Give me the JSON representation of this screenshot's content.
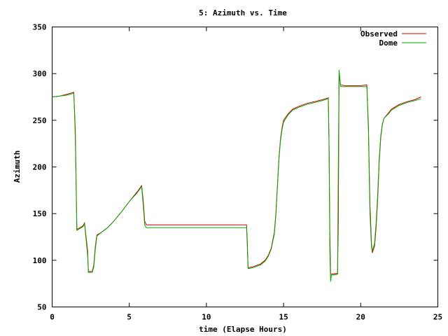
{
  "chart_data": {
    "type": "line",
    "title": "5: Azimuth vs. Time",
    "xlabel": "time (Elapse Hours)",
    "ylabel": "Azimuth",
    "xlim": [
      0,
      25
    ],
    "ylim": [
      50,
      350
    ],
    "x_ticks": [
      0,
      5,
      10,
      15,
      20,
      25
    ],
    "y_ticks": [
      50,
      100,
      150,
      200,
      250,
      300,
      350
    ],
    "grid": false,
    "legend_position": "top-right",
    "series": [
      {
        "name": "Observed",
        "color": "#cc0000",
        "points": [
          [
            0.0,
            275
          ],
          [
            0.5,
            276
          ],
          [
            1.0,
            278
          ],
          [
            1.4,
            280
          ],
          [
            1.45,
            260
          ],
          [
            1.5,
            240
          ],
          [
            1.55,
            185
          ],
          [
            1.6,
            133
          ],
          [
            2.0,
            137
          ],
          [
            2.1,
            140
          ],
          [
            2.2,
            125
          ],
          [
            2.3,
            110
          ],
          [
            2.35,
            88
          ],
          [
            2.6,
            88
          ],
          [
            2.7,
            95
          ],
          [
            2.8,
            115
          ],
          [
            2.9,
            127
          ],
          [
            3.2,
            130
          ],
          [
            3.6,
            135
          ],
          [
            4.0,
            142
          ],
          [
            4.5,
            152
          ],
          [
            5.0,
            163
          ],
          [
            5.5,
            173
          ],
          [
            5.8,
            180
          ],
          [
            5.9,
            165
          ],
          [
            6.0,
            142
          ],
          [
            6.1,
            138
          ],
          [
            12.6,
            138
          ],
          [
            12.65,
            120
          ],
          [
            12.7,
            92
          ],
          [
            13.0,
            93
          ],
          [
            13.5,
            96
          ],
          [
            13.8,
            100
          ],
          [
            14.0,
            105
          ],
          [
            14.2,
            113
          ],
          [
            14.4,
            130
          ],
          [
            14.5,
            150
          ],
          [
            14.6,
            180
          ],
          [
            14.7,
            210
          ],
          [
            14.8,
            230
          ],
          [
            14.9,
            242
          ],
          [
            15.0,
            250
          ],
          [
            15.3,
            257
          ],
          [
            15.6,
            262
          ],
          [
            16.0,
            265
          ],
          [
            16.5,
            268
          ],
          [
            17.0,
            270
          ],
          [
            17.5,
            272
          ],
          [
            17.9,
            274
          ],
          [
            17.95,
            225
          ],
          [
            18.0,
            130
          ],
          [
            18.05,
            85
          ],
          [
            18.5,
            86
          ],
          [
            18.55,
            140
          ],
          [
            18.6,
            300
          ],
          [
            18.7,
            288
          ],
          [
            19.0,
            287
          ],
          [
            19.5,
            287
          ],
          [
            20.0,
            287
          ],
          [
            20.4,
            288
          ],
          [
            20.45,
            265
          ],
          [
            20.5,
            245
          ],
          [
            20.6,
            160
          ],
          [
            20.7,
            118
          ],
          [
            20.75,
            108
          ],
          [
            20.9,
            115
          ],
          [
            21.0,
            135
          ],
          [
            21.1,
            165
          ],
          [
            21.2,
            205
          ],
          [
            21.3,
            232
          ],
          [
            21.4,
            245
          ],
          [
            21.5,
            252
          ],
          [
            21.8,
            258
          ],
          [
            22.0,
            262
          ],
          [
            22.5,
            267
          ],
          [
            23.0,
            270
          ],
          [
            23.5,
            272
          ],
          [
            23.9,
            275
          ]
        ]
      },
      {
        "name": "Dome",
        "color": "#00aa00",
        "points": [
          [
            0.0,
            275
          ],
          [
            0.5,
            276
          ],
          [
            1.0,
            277
          ],
          [
            1.4,
            279
          ],
          [
            1.45,
            258
          ],
          [
            1.5,
            230
          ],
          [
            1.55,
            180
          ],
          [
            1.6,
            132
          ],
          [
            2.0,
            136
          ],
          [
            2.1,
            139
          ],
          [
            2.2,
            122
          ],
          [
            2.3,
            105
          ],
          [
            2.35,
            87
          ],
          [
            2.6,
            87
          ],
          [
            2.7,
            93
          ],
          [
            2.8,
            112
          ],
          [
            2.9,
            126
          ],
          [
            3.2,
            130
          ],
          [
            3.6,
            135
          ],
          [
            4.0,
            142
          ],
          [
            4.5,
            152
          ],
          [
            5.0,
            163
          ],
          [
            5.5,
            172
          ],
          [
            5.8,
            179
          ],
          [
            5.9,
            160
          ],
          [
            6.0,
            138
          ],
          [
            6.1,
            135
          ],
          [
            12.6,
            135
          ],
          [
            12.65,
            115
          ],
          [
            12.7,
            91
          ],
          [
            13.0,
            92
          ],
          [
            13.5,
            95
          ],
          [
            13.8,
            99
          ],
          [
            14.0,
            104
          ],
          [
            14.2,
            112
          ],
          [
            14.4,
            128
          ],
          [
            14.5,
            148
          ],
          [
            14.6,
            178
          ],
          [
            14.7,
            208
          ],
          [
            14.8,
            228
          ],
          [
            14.9,
            240
          ],
          [
            15.0,
            248
          ],
          [
            15.3,
            256
          ],
          [
            15.6,
            261
          ],
          [
            16.0,
            264
          ],
          [
            16.5,
            267
          ],
          [
            17.0,
            269
          ],
          [
            17.5,
            271
          ],
          [
            17.9,
            273
          ],
          [
            17.95,
            220
          ],
          [
            18.0,
            110
          ],
          [
            18.05,
            77
          ],
          [
            18.1,
            84
          ],
          [
            18.5,
            85
          ],
          [
            18.55,
            200
          ],
          [
            18.6,
            304
          ],
          [
            18.7,
            286
          ],
          [
            19.0,
            286
          ],
          [
            19.5,
            286
          ],
          [
            20.0,
            286
          ],
          [
            20.4,
            286
          ],
          [
            20.45,
            262
          ],
          [
            20.5,
            240
          ],
          [
            20.6,
            150
          ],
          [
            20.7,
            114
          ],
          [
            20.75,
            110
          ],
          [
            20.9,
            118
          ],
          [
            21.0,
            140
          ],
          [
            21.1,
            170
          ],
          [
            21.2,
            208
          ],
          [
            21.3,
            234
          ],
          [
            21.4,
            246
          ],
          [
            21.5,
            252
          ],
          [
            21.8,
            257
          ],
          [
            22.0,
            261
          ],
          [
            22.5,
            266
          ],
          [
            23.0,
            269
          ],
          [
            23.5,
            271
          ],
          [
            23.9,
            273
          ]
        ]
      }
    ]
  }
}
